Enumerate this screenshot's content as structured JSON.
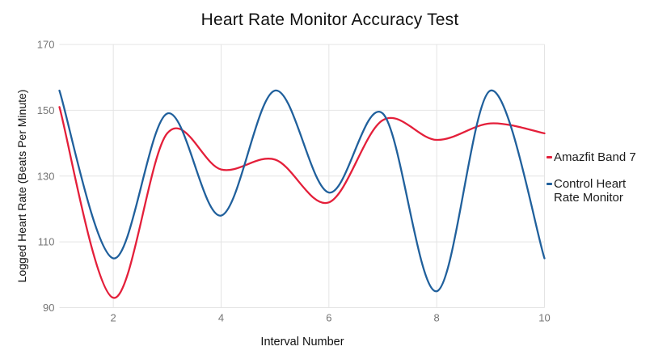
{
  "chart": {
    "title": "Heart Rate Monitor Accuracy Test",
    "xlabel": "Interval Number",
    "ylabel": "Logged Heart Rate (Beats Per Minute)"
  },
  "chart_data": {
    "type": "line",
    "smooth": true,
    "title": "Heart Rate Monitor Accuracy Test",
    "xlabel": "Interval Number",
    "ylabel": "Logged Heart Rate (Beats Per Minute)",
    "x": [
      1,
      2,
      3,
      4,
      5,
      6,
      7,
      8,
      9,
      10
    ],
    "series": [
      {
        "name": "Amazfit Band 7",
        "color": "#e41f3a",
        "values": [
          151,
          93,
          143,
          132,
          135,
          122,
          147,
          141,
          146,
          143
        ]
      },
      {
        "name": "Control Heart Rate Monitor",
        "color": "#20609c",
        "values": [
          156,
          105,
          149,
          118,
          156,
          125,
          149,
          95,
          156,
          105
        ]
      }
    ],
    "xticks": [
      2,
      4,
      6,
      8,
      10
    ],
    "yticks": [
      90,
      110,
      130,
      150,
      170
    ],
    "xlim": [
      1,
      10
    ],
    "ylim": [
      90,
      170
    ],
    "grid": true,
    "legend_position": "right",
    "colors": {
      "background": "#ffffff",
      "gridline": "#e4e4e4",
      "tick_label": "#757575",
      "title_text": "#111111",
      "legend_text": "#1c1c1c"
    }
  }
}
